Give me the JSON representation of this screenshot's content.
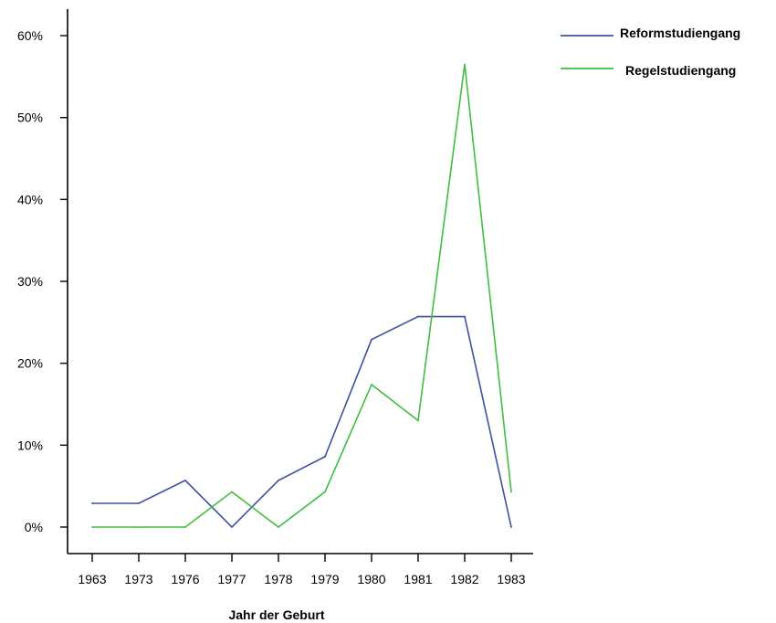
{
  "chart_data": {
    "type": "line",
    "title": "",
    "xlabel": "Jahr der Geburt",
    "ylabel": "",
    "categories": [
      "1963",
      "1973",
      "1976",
      "1977",
      "1978",
      "1979",
      "1980",
      "1981",
      "1982",
      "1983"
    ],
    "y_tick_labels": [
      "0%",
      "10%",
      "20%",
      "30%",
      "40%",
      "50%",
      "60%"
    ],
    "ylim": [
      0,
      60
    ],
    "y_unit": "%",
    "grid": false,
    "legend_position": "top-right",
    "series": [
      {
        "name": "Reformstudiengang",
        "color": "#3f4fa5",
        "values": [
          2.9,
          2.9,
          5.7,
          0.0,
          5.7,
          8.6,
          22.9,
          25.7,
          25.7,
          0.0
        ]
      },
      {
        "name": "Regelstudiengang",
        "color": "#3fbf3f",
        "values": [
          0.0,
          0.0,
          0.0,
          4.3,
          0.0,
          4.3,
          17.4,
          13.0,
          56.5,
          4.3
        ]
      }
    ]
  }
}
